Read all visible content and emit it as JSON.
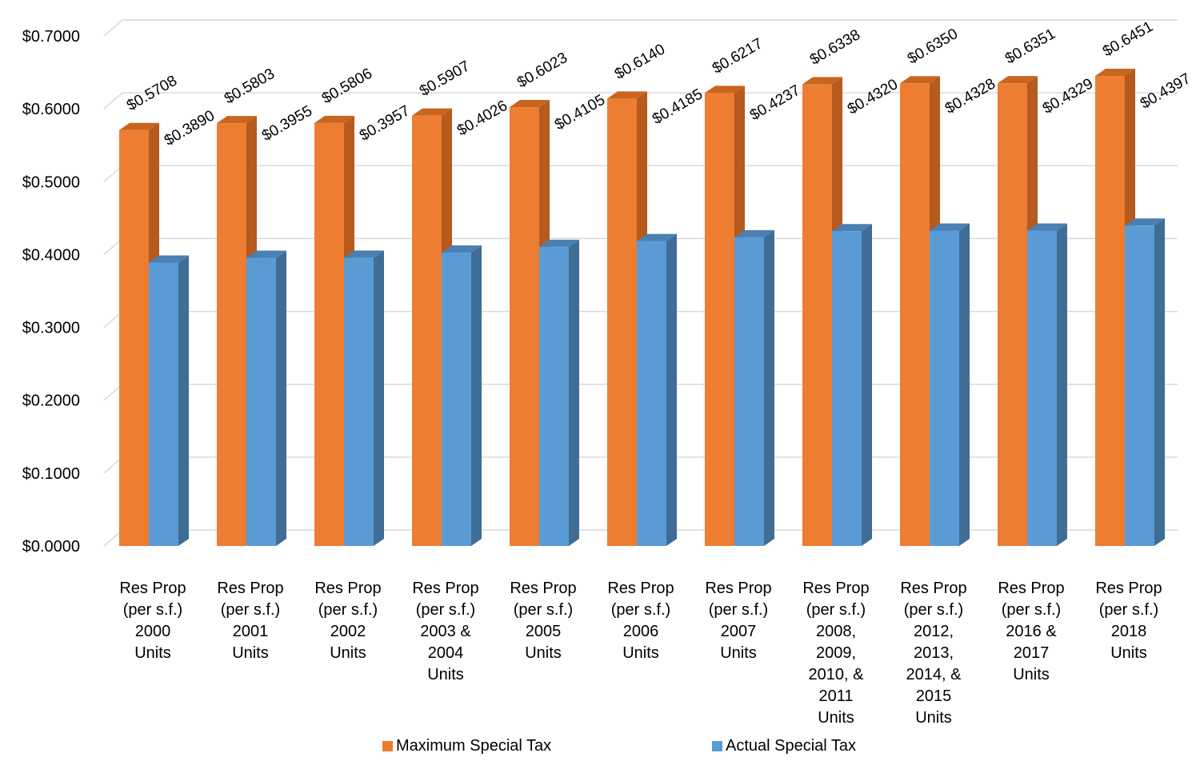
{
  "chart_data": {
    "type": "bar",
    "title": "",
    "xlabel": "",
    "ylabel": "",
    "ylim": [
      0,
      0.7
    ],
    "yticks": [
      "$0.0000",
      "$0.1000",
      "$0.2000",
      "$0.3000",
      "$0.4000",
      "$0.5000",
      "$0.6000",
      "$0.7000"
    ],
    "grid": true,
    "legend_position": "bottom",
    "categories": [
      [
        "Res Prop",
        "(per s.f.)",
        "2000",
        "Units"
      ],
      [
        "Res Prop",
        "(per s.f.)",
        "2001",
        "Units"
      ],
      [
        "Res Prop",
        "(per s.f.)",
        "2002",
        "Units"
      ],
      [
        "Res Prop",
        "(per s.f.)",
        "2003 &",
        "2004",
        "Units"
      ],
      [
        "Res Prop",
        "(per s.f.)",
        "2005",
        "Units"
      ],
      [
        "Res Prop",
        "(per s.f.)",
        "2006",
        "Units"
      ],
      [
        "Res Prop",
        "(per s.f.)",
        "2007",
        "Units"
      ],
      [
        "Res Prop",
        "(per s.f.)",
        "2008,",
        "2009,",
        "2010, &",
        "2011",
        "Units"
      ],
      [
        "Res Prop",
        "(per s.f.)",
        "2012,",
        "2013,",
        "2014, &",
        "2015",
        "Units"
      ],
      [
        "Res Prop",
        "(per s.f.)",
        "2016 &",
        "2017",
        "Units"
      ],
      [
        "Res Prop",
        "(per s.f.)",
        "2018",
        "Units"
      ]
    ],
    "series": [
      {
        "name": "Maximum Special Tax",
        "color": "#ED7D31",
        "side_color": "#B65A1D",
        "top_color": "#C9651F",
        "values": [
          0.5708,
          0.5803,
          0.5806,
          0.5907,
          0.6023,
          0.614,
          0.6217,
          0.6338,
          0.635,
          0.6351,
          0.6451
        ],
        "labels": [
          "$0.5708",
          "$0.5803",
          "$0.5806",
          "$0.5907",
          "$0.6023",
          "$0.6140",
          "$0.6217",
          "$0.6338",
          "$0.6350",
          "$0.6351",
          "$0.6451"
        ]
      },
      {
        "name": "Actual Special Tax",
        "color": "#5B9BD5",
        "side_color": "#3F6D96",
        "top_color": "#4A80B2",
        "values": [
          0.389,
          0.3955,
          0.3957,
          0.4026,
          0.4105,
          0.4185,
          0.4237,
          0.432,
          0.4328,
          0.4329,
          0.4397
        ],
        "labels": [
          "$0.3890",
          "$0.3955",
          "$0.3957",
          "$0.4026",
          "$0.4105",
          "$0.4185",
          "$0.4237",
          "$0.4320",
          "$0.4328",
          "$0.4329",
          "$0.4397"
        ]
      }
    ]
  }
}
